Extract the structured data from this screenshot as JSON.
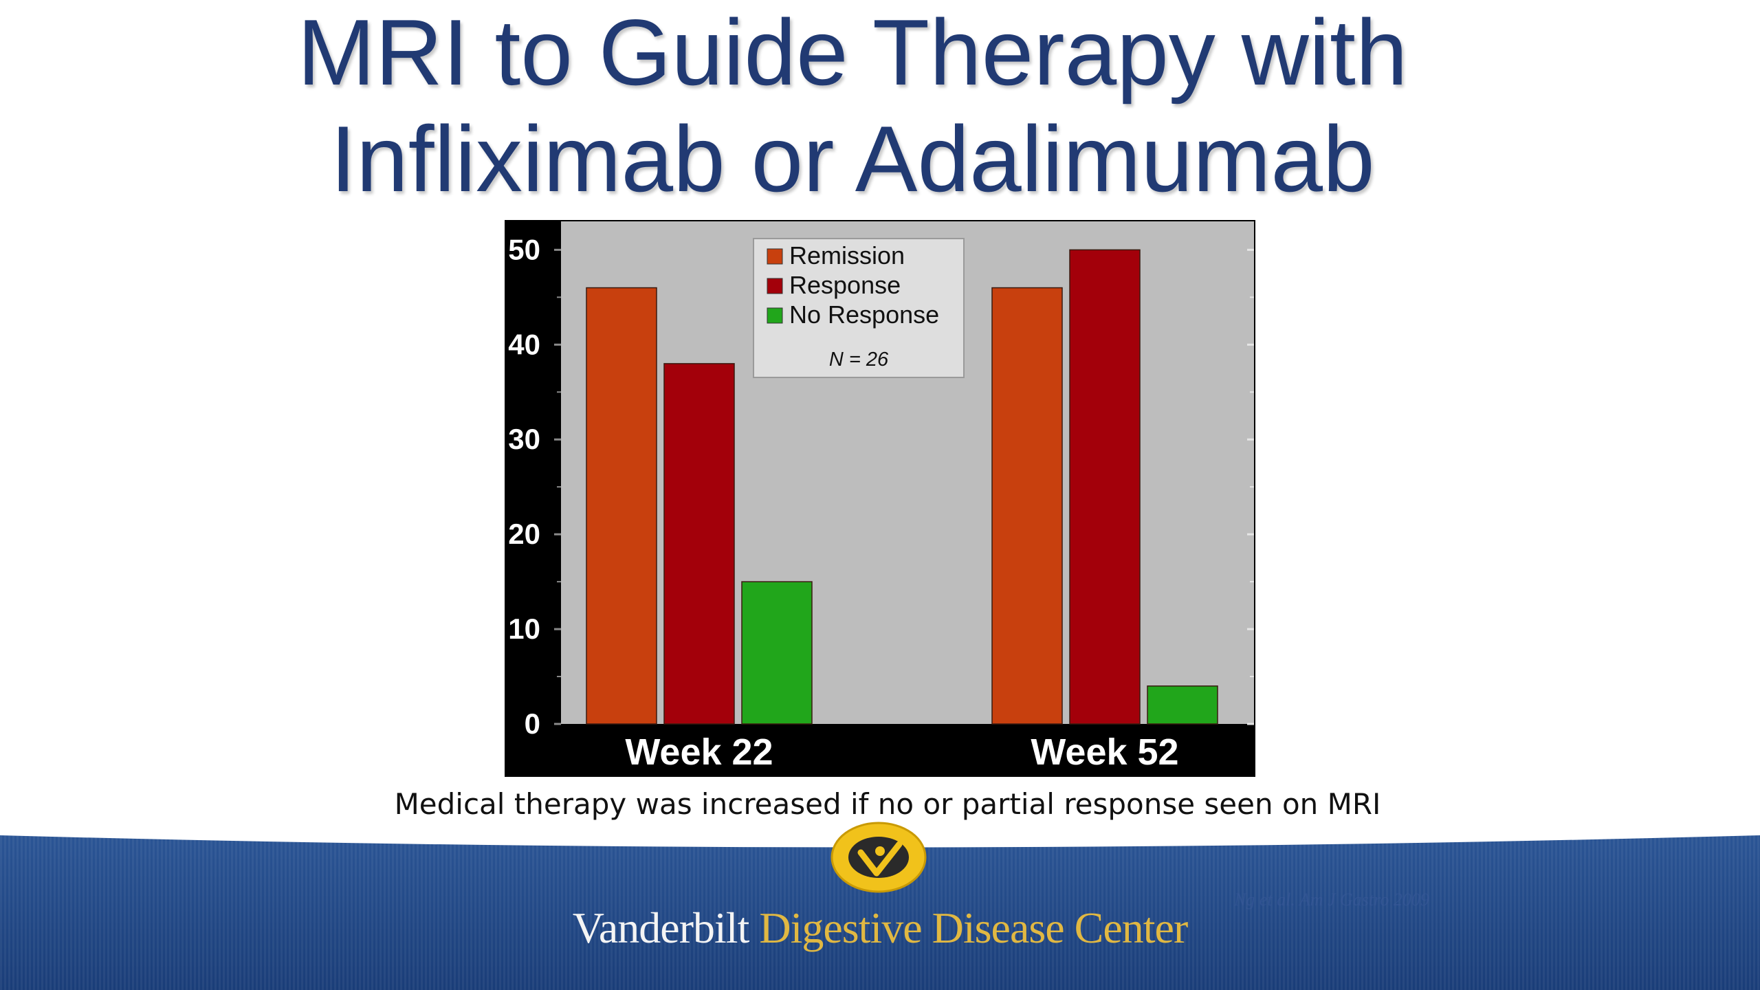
{
  "slide": {
    "title_line1": "MRI to Guide Therapy with",
    "title_line2": "Infliximab or Adalimumab",
    "caption": "Medical therapy was increased if no or partial response seen on MRI",
    "brand_part1": "Vanderbilt",
    "brand_part2": "Digestive Disease Center",
    "citation": "Ng et al. Am J Gastro 2009"
  },
  "colors": {
    "title": "#213a73",
    "banner": "#1f4785",
    "brand_gold": "#e1b842",
    "plot_bg": "#bdbdbd",
    "frame": "#000000"
  },
  "icons": {
    "logo": "vanderbilt-seal-icon"
  },
  "chart_data": {
    "type": "bar",
    "categories": [
      "Week 22",
      "Week 52"
    ],
    "series": [
      {
        "name": "Remission",
        "values": [
          46,
          46
        ],
        "color": "#c8400e"
      },
      {
        "name": "Response",
        "values": [
          38,
          50
        ],
        "color": "#a3000a"
      },
      {
        "name": "No Response",
        "values": [
          15,
          4
        ],
        "color": "#21a61b"
      }
    ],
    "yticks": [
      0,
      10,
      20,
      30,
      40,
      50
    ],
    "ylim": [
      0,
      53
    ],
    "legend_note": "N = 26",
    "legend_position": "top-center",
    "grid": false
  }
}
